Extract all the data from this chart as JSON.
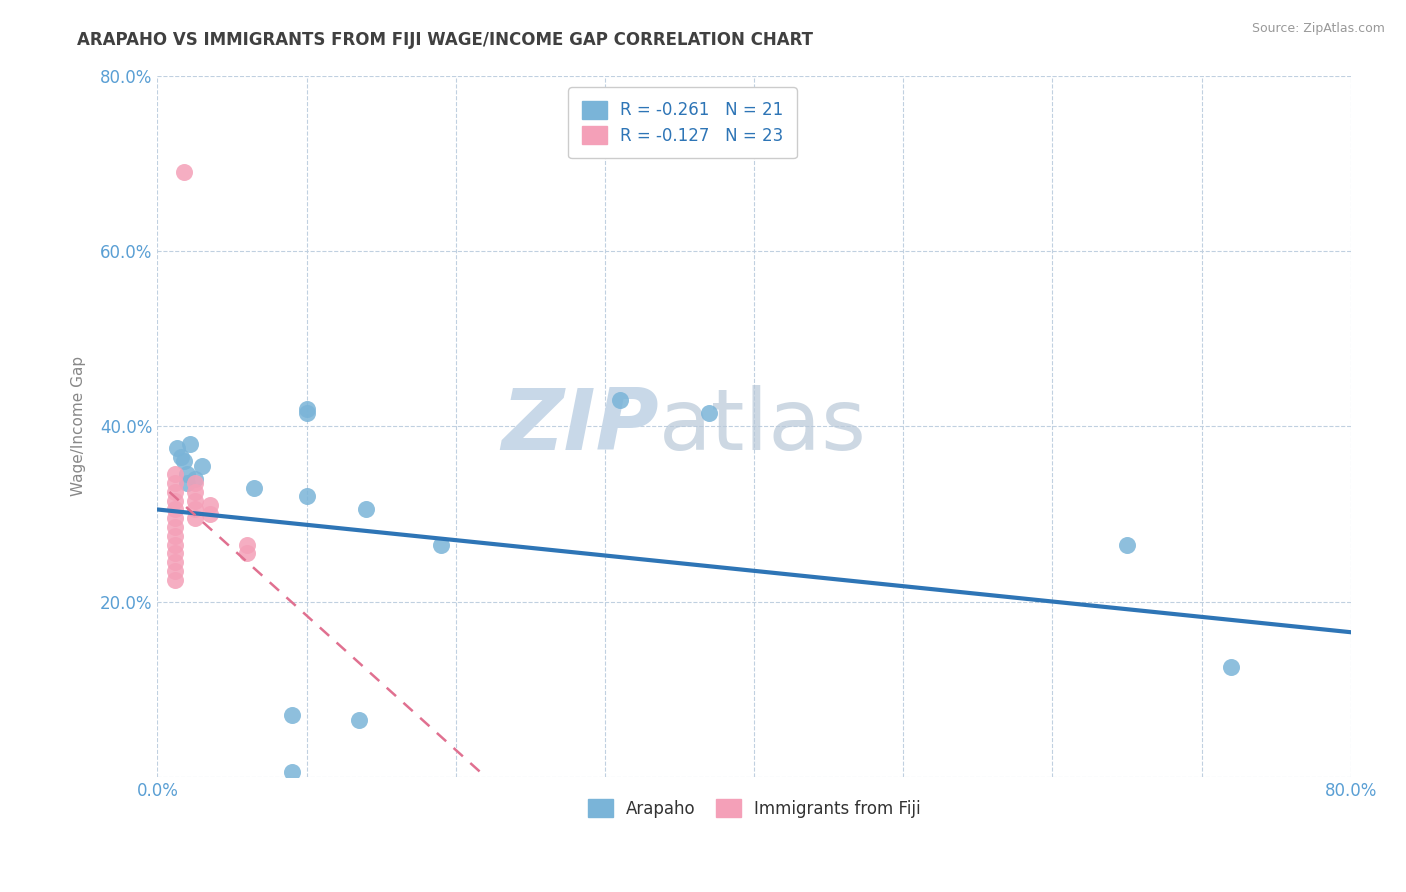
{
  "title": "ARAPAHO VS IMMIGRANTS FROM FIJI WAGE/INCOME GAP CORRELATION CHART",
  "source": "Source: ZipAtlas.com",
  "ylabel": "Wage/Income Gap",
  "xlim": [
    0.0,
    0.8
  ],
  "ylim": [
    0.0,
    0.8
  ],
  "xticks": [
    0.0,
    0.1,
    0.2,
    0.3,
    0.4,
    0.5,
    0.6,
    0.7,
    0.8
  ],
  "xticklabels": [
    "0.0%",
    "",
    "",
    "",
    "",
    "",
    "",
    "",
    "80.0%"
  ],
  "yticks": [
    0.0,
    0.2,
    0.4,
    0.6,
    0.8
  ],
  "yticklabels": [
    "",
    "20.0%",
    "40.0%",
    "60.0%",
    "80.0%"
  ],
  "arapaho_points": [
    [
      0.013,
      0.375
    ],
    [
      0.016,
      0.365
    ],
    [
      0.018,
      0.36
    ],
    [
      0.02,
      0.345
    ],
    [
      0.02,
      0.335
    ],
    [
      0.022,
      0.38
    ],
    [
      0.025,
      0.34
    ],
    [
      0.03,
      0.355
    ],
    [
      0.065,
      0.33
    ],
    [
      0.1,
      0.32
    ],
    [
      0.14,
      0.305
    ],
    [
      0.19,
      0.265
    ],
    [
      0.1,
      0.42
    ],
    [
      0.1,
      0.415
    ],
    [
      0.31,
      0.43
    ],
    [
      0.37,
      0.415
    ],
    [
      0.09,
      0.07
    ],
    [
      0.135,
      0.065
    ],
    [
      0.09,
      0.005
    ],
    [
      0.65,
      0.265
    ],
    [
      0.72,
      0.125
    ]
  ],
  "fiji_points": [
    [
      0.018,
      0.69
    ],
    [
      0.012,
      0.345
    ],
    [
      0.012,
      0.335
    ],
    [
      0.012,
      0.325
    ],
    [
      0.012,
      0.315
    ],
    [
      0.012,
      0.305
    ],
    [
      0.012,
      0.295
    ],
    [
      0.012,
      0.285
    ],
    [
      0.012,
      0.275
    ],
    [
      0.012,
      0.265
    ],
    [
      0.012,
      0.255
    ],
    [
      0.012,
      0.245
    ],
    [
      0.012,
      0.235
    ],
    [
      0.012,
      0.225
    ],
    [
      0.025,
      0.335
    ],
    [
      0.025,
      0.325
    ],
    [
      0.025,
      0.315
    ],
    [
      0.025,
      0.305
    ],
    [
      0.025,
      0.295
    ],
    [
      0.035,
      0.31
    ],
    [
      0.035,
      0.3
    ],
    [
      0.06,
      0.265
    ],
    [
      0.06,
      0.255
    ]
  ],
  "arapaho_line": {
    "x0": 0.0,
    "y0": 0.305,
    "x1": 0.8,
    "y1": 0.165
  },
  "fiji_line": {
    "x0": 0.008,
    "y0": 0.325,
    "x1": 0.22,
    "y1": 0.0
  },
  "arapaho_color": "#7ab4d8",
  "fiji_color": "#f4a0b8",
  "arapaho_line_color": "#2e75b6",
  "fiji_line_color": "#e07090",
  "fiji_line_dashed": true,
  "background_color": "#ffffff",
  "grid_color": "#c0d0e0",
  "title_color": "#404040",
  "tick_color": "#5a9fd4",
  "source_color": "#999999",
  "ylabel_color": "#888888",
  "legend_text_color": "#2e75b6",
  "watermark_zip_color": "#c8d8e8",
  "watermark_atlas_color": "#b8c8d8"
}
